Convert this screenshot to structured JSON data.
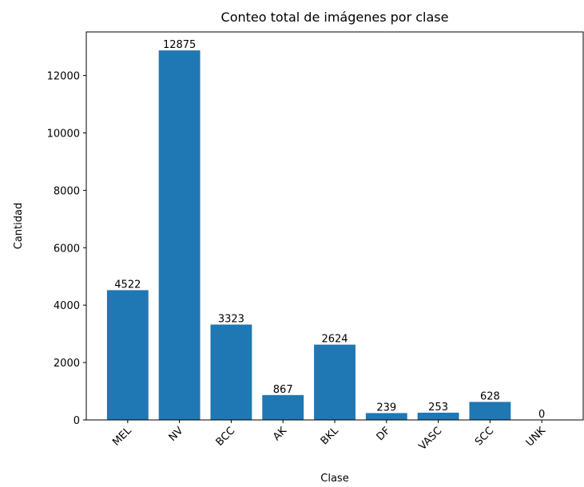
{
  "chart_data": {
    "type": "bar",
    "title": "Conteo total de imágenes por clase",
    "x_label": "Clase",
    "y_label": "Cantidad",
    "categories": [
      "MEL",
      "NV",
      "BCC",
      "AK",
      "BKL",
      "DF",
      "VASC",
      "SCC",
      "UNK"
    ],
    "values": [
      4522,
      12875,
      3323,
      867,
      2624,
      239,
      253,
      628,
      0
    ],
    "color": "#1f77b4",
    "ylim": [
      0,
      13518.75
    ],
    "yticks": [
      0,
      2000,
      4000,
      6000,
      8000,
      10000,
      12000
    ],
    "grid": false
  }
}
